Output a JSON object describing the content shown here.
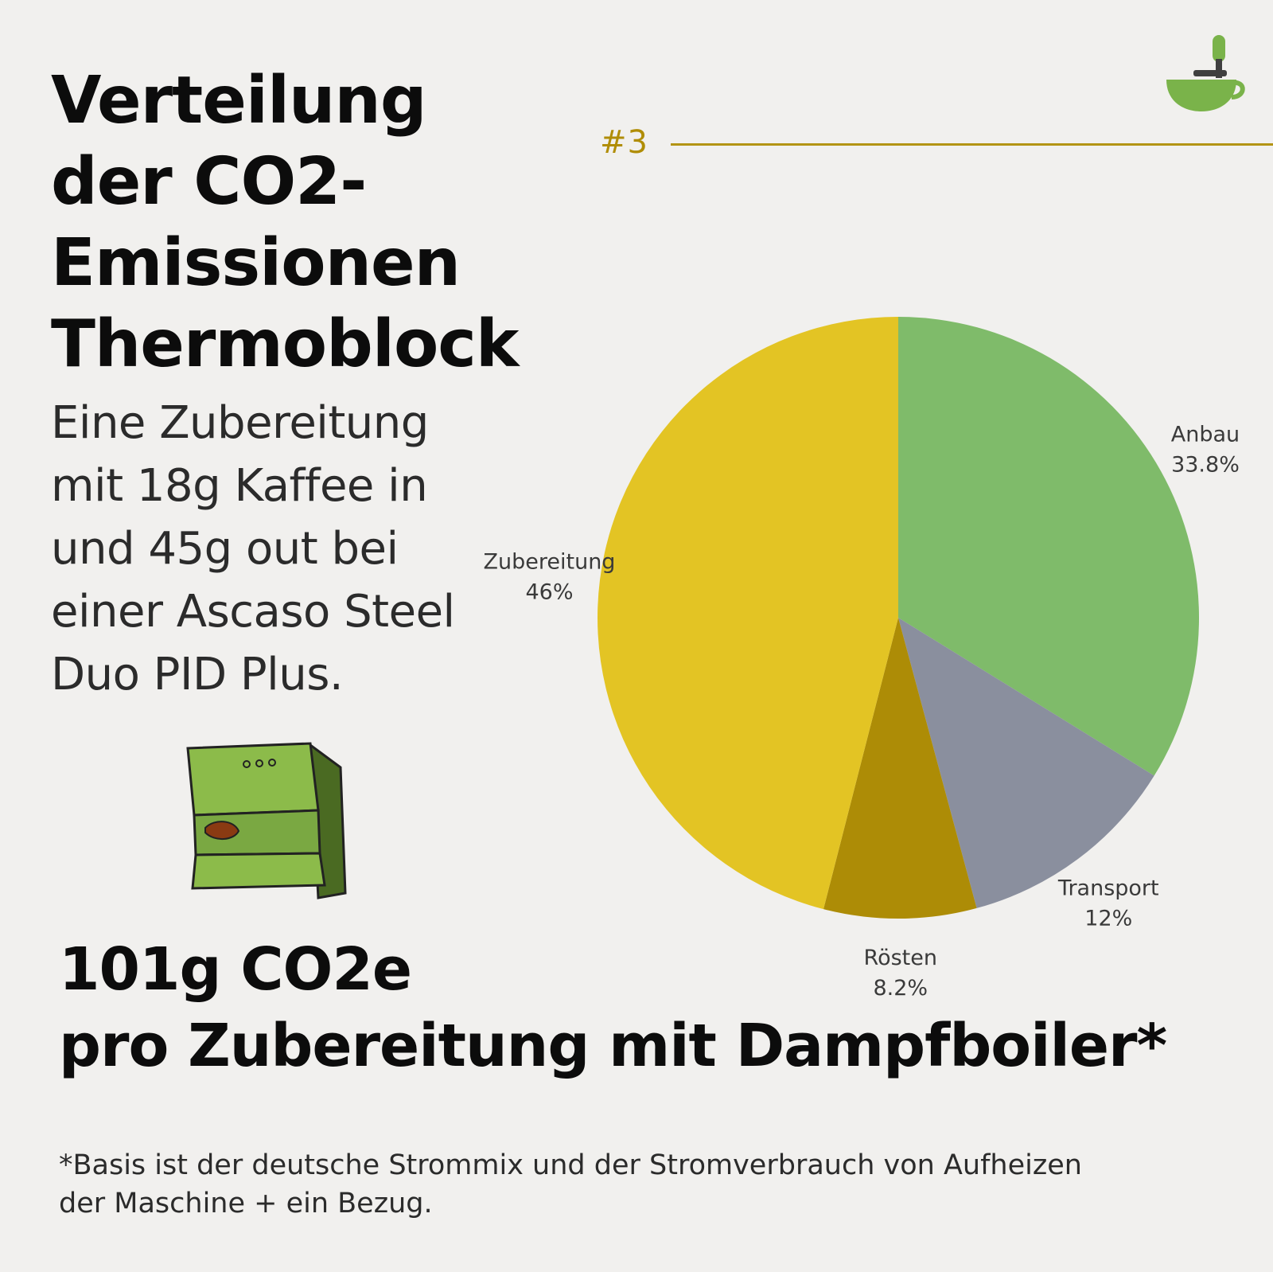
{
  "header": {
    "title_lines": [
      "Verteilung",
      "der CO2-",
      "Emissionen",
      "Thermoblock"
    ],
    "subtitle_lines": [
      "Eine Zubereitung",
      "mit 18g Kaffee in",
      "und 45g out bei",
      "einer Ascaso Steel",
      "Duo PID Plus."
    ],
    "step_label": "#3"
  },
  "colors": {
    "accent_line": "#b39414",
    "step_text": "#b08d06"
  },
  "icons": {
    "logo": "cup-with-grinder-logo-icon",
    "illustration": "espresso-machine-icon"
  },
  "chart_data": {
    "type": "pie",
    "title": "",
    "slices": [
      {
        "name": "Anbau",
        "value": 33.8,
        "label": "33.8%",
        "color": "#7fbb6a"
      },
      {
        "name": "Transport",
        "value": 12,
        "label": "12%",
        "color": "#8a8f9e"
      },
      {
        "name": "Rösten",
        "value": 8.2,
        "label": "8.2%",
        "color": "#ad8c06"
      },
      {
        "name": "Zubereitung",
        "value": 46,
        "label": "46%",
        "color": "#e3c424"
      }
    ],
    "start_angle_deg": 0,
    "direction": "clockwise",
    "legend": "none"
  },
  "summary": {
    "lines": [
      "101g CO2e",
      "pro Zubereitung mit Dampfboiler*"
    ]
  },
  "footnote": {
    "lines": [
      "*Basis ist der deutsche Strommix und der Stromverbrauch von Aufheizen",
      "der Maschine + ein Bezug."
    ]
  }
}
